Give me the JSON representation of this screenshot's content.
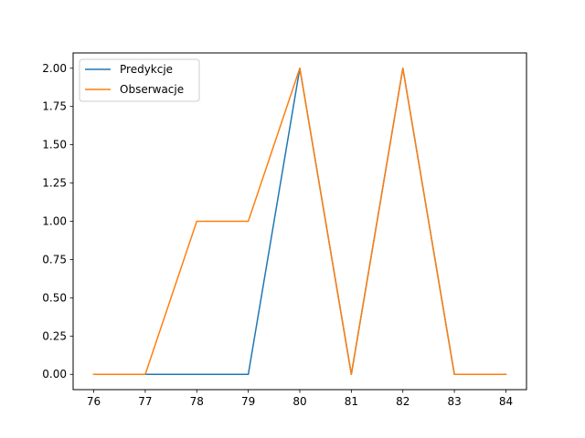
{
  "chart_data": {
    "type": "line",
    "title": "",
    "xlabel": "",
    "ylabel": "",
    "x": [
      76,
      77,
      78,
      79,
      80,
      81,
      82,
      83,
      84
    ],
    "xlim": [
      75.6,
      84.4
    ],
    "ylim": [
      -0.1,
      2.1
    ],
    "xticks": [
      76,
      77,
      78,
      79,
      80,
      81,
      82,
      83,
      84
    ],
    "yticks": [
      0,
      0.25,
      0.5,
      0.75,
      1.0,
      1.25,
      1.5,
      1.75,
      2.0
    ],
    "xtick_labels": [
      "76",
      "77",
      "78",
      "79",
      "80",
      "81",
      "82",
      "83",
      "84"
    ],
    "ytick_labels": [
      "0.00",
      "0.25",
      "0.50",
      "0.75",
      "1.00",
      "1.25",
      "1.50",
      "1.75",
      "2.00"
    ],
    "grid": false,
    "legend_position": "top-left",
    "series": [
      {
        "name": "Predykcje",
        "color": "#1f77b4",
        "values": [
          0,
          0,
          0,
          0,
          2,
          0,
          2,
          0,
          0
        ]
      },
      {
        "name": "Obserwacje",
        "color": "#ff7f0e",
        "values": [
          0,
          0,
          1,
          1,
          2,
          0,
          2,
          0,
          0
        ]
      }
    ]
  }
}
